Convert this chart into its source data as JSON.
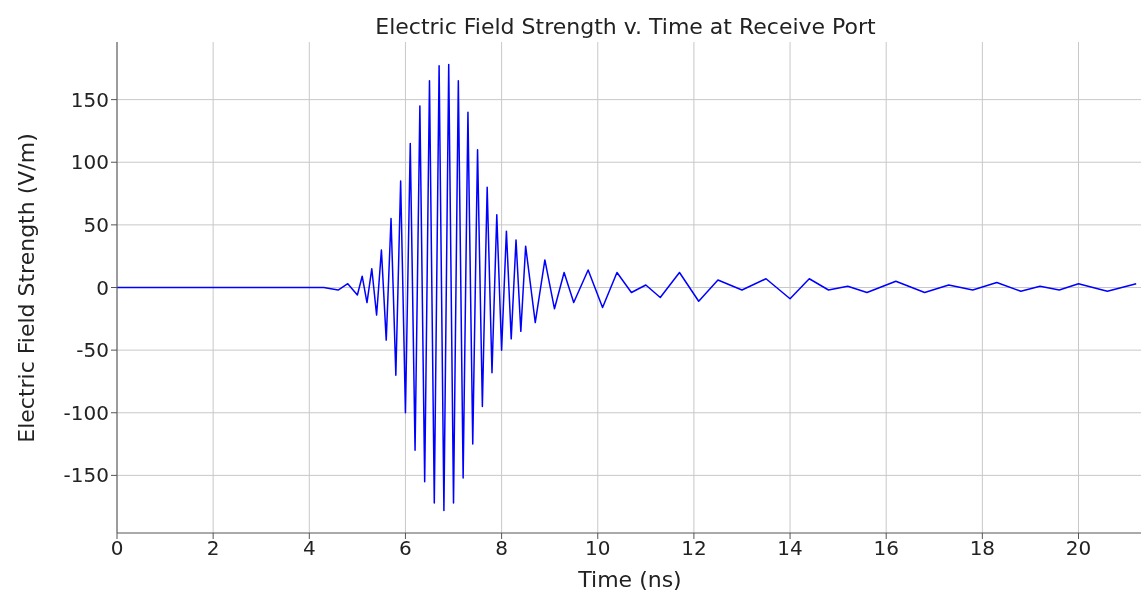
{
  "chart_data": {
    "type": "line",
    "title": "Electric Field Strength v. Time at Receive Port",
    "xlabel": "Time (ns)",
    "ylabel": "Electric Field Strength (V/m)",
    "x": [
      0,
      4.3,
      4.6,
      4.8,
      5.0,
      5.1,
      5.2,
      5.3,
      5.4,
      5.5,
      5.6,
      5.7,
      5.8,
      5.9,
      6.0,
      6.1,
      6.2,
      6.3,
      6.4,
      6.5,
      6.6,
      6.7,
      6.8,
      6.9,
      7.0,
      7.1,
      7.2,
      7.3,
      7.4,
      7.5,
      7.6,
      7.7,
      7.8,
      7.9,
      8.0,
      8.1,
      8.2,
      8.3,
      8.4,
      8.5,
      8.7,
      8.9,
      9.1,
      9.3,
      9.5,
      9.8,
      10.1,
      10.4,
      10.7,
      11.0,
      11.3,
      11.7,
      12.1,
      12.5,
      13.0,
      13.5,
      14.0,
      14.4,
      14.8,
      15.2,
      15.6,
      16.2,
      16.8,
      17.3,
      17.8,
      18.3,
      18.8,
      19.2,
      19.6,
      20.0,
      20.6,
      21.2
    ],
    "series": [
      {
        "color": "#0000ff",
        "values": [
          0,
          0,
          -2,
          3,
          -6,
          9,
          -12,
          15,
          -22,
          30,
          -42,
          55,
          -70,
          85,
          -100,
          115,
          -130,
          145,
          -155,
          165,
          -172,
          177,
          -178,
          178,
          -172,
          165,
          -152,
          140,
          -125,
          110,
          -95,
          80,
          -68,
          58,
          -50,
          45,
          -41,
          38,
          -35,
          33,
          -28,
          22,
          -17,
          12,
          -12,
          14,
          -16,
          12,
          -4,
          2,
          -8,
          12,
          -11,
          6,
          -2,
          7,
          -9,
          7,
          -2,
          1,
          -4,
          5,
          -4,
          2,
          -2,
          4,
          -3,
          1,
          -2,
          3,
          -3,
          3
        ]
      }
    ],
    "xlim": [
      0,
      21.3
    ],
    "xticks": [
      0,
      2,
      4,
      6,
      8,
      10,
      12,
      14,
      16,
      18,
      20
    ],
    "ylim": [
      -196,
      196
    ],
    "yticks": [
      -150,
      -100,
      -50,
      0,
      50,
      100,
      150
    ],
    "grid": true,
    "marker": "none",
    "line_style": "solid"
  }
}
